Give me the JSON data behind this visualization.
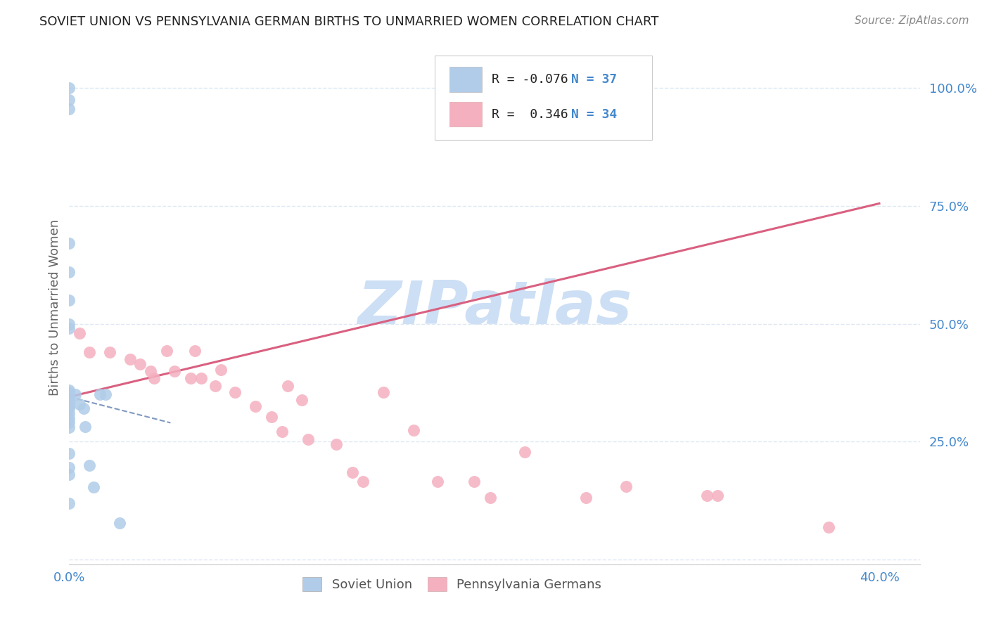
{
  "title": "SOVIET UNION VS PENNSYLVANIA GERMAN BIRTHS TO UNMARRIED WOMEN CORRELATION CHART",
  "source": "Source: ZipAtlas.com",
  "ylabel": "Births to Unmarried Women",
  "xlim": [
    0.0,
    0.42
  ],
  "ylim": [
    -0.01,
    1.08
  ],
  "ytick_vals": [
    0.0,
    0.25,
    0.5,
    0.75,
    1.0
  ],
  "ytick_labels": [
    "",
    "25.0%",
    "50.0%",
    "75.0%",
    "100.0%"
  ],
  "xtick_vals": [
    0.0,
    0.05,
    0.1,
    0.15,
    0.2,
    0.25,
    0.3,
    0.35,
    0.4
  ],
  "xtick_labels": [
    "0.0%",
    "",
    "",
    "",
    "",
    "",
    "",
    "",
    "40.0%"
  ],
  "color_blue_scatter": "#b0cce8",
  "color_pink_scatter": "#f5b0c0",
  "color_blue_line": "#5577aa",
  "color_pink_line": "#d96080",
  "color_axis_text": "#4488cc",
  "color_grid": "#dde8f4",
  "color_bg": "#ffffff",
  "color_watermark": "#cddff5",
  "color_title": "#222222",
  "color_source": "#888888",
  "legend_box_color": "#f5f8ff",
  "legend_edge_color": "#cccccc",
  "soviet_x": [
    0.0,
    0.0,
    0.0,
    0.0,
    0.0,
    0.0,
    0.0,
    0.0,
    0.0,
    0.0,
    0.0,
    0.0,
    0.0,
    0.0,
    0.0,
    0.0,
    0.0,
    0.0,
    0.0,
    0.0,
    0.0,
    0.0,
    0.0,
    0.0,
    0.0,
    0.0,
    0.0,
    0.0,
    0.003,
    0.005,
    0.007,
    0.008,
    0.01,
    0.012,
    0.015,
    0.018,
    0.025
  ],
  "soviet_y": [
    1.0,
    0.975,
    0.955,
    0.67,
    0.61,
    0.55,
    0.5,
    0.49,
    0.36,
    0.355,
    0.35,
    0.348,
    0.345,
    0.342,
    0.34,
    0.335,
    0.33,
    0.328,
    0.325,
    0.32,
    0.31,
    0.3,
    0.29,
    0.28,
    0.225,
    0.195,
    0.18,
    0.12,
    0.35,
    0.33,
    0.32,
    0.282,
    0.2,
    0.153,
    0.35,
    0.35,
    0.078
  ],
  "pa_german_x": [
    0.005,
    0.01,
    0.02,
    0.03,
    0.035,
    0.04,
    0.042,
    0.048,
    0.052,
    0.06,
    0.062,
    0.065,
    0.072,
    0.075,
    0.082,
    0.092,
    0.1,
    0.105,
    0.108,
    0.115,
    0.118,
    0.132,
    0.14,
    0.145,
    0.155,
    0.17,
    0.182,
    0.2,
    0.208,
    0.225,
    0.255,
    0.275,
    0.315,
    0.32,
    0.375
  ],
  "pa_german_y": [
    0.48,
    0.44,
    0.44,
    0.425,
    0.415,
    0.4,
    0.385,
    0.442,
    0.4,
    0.385,
    0.442,
    0.385,
    0.368,
    0.402,
    0.355,
    0.325,
    0.302,
    0.272,
    0.368,
    0.338,
    0.255,
    0.245,
    0.185,
    0.165,
    0.355,
    0.275,
    0.165,
    0.165,
    0.132,
    0.228,
    0.132,
    0.155,
    0.135,
    0.135,
    0.068
  ],
  "pink_line_x0": 0.0,
  "pink_line_y0": 0.345,
  "pink_line_x1": 0.4,
  "pink_line_y1": 0.755,
  "blue_line_x0": 0.0,
  "blue_line_y0": 0.345,
  "blue_line_x1": 0.05,
  "blue_line_y1": 0.29
}
